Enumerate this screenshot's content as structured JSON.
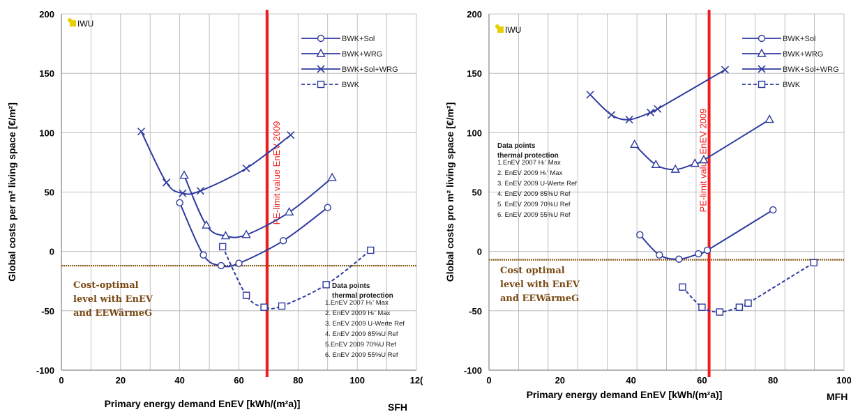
{
  "chart_data": [
    {
      "type": "line",
      "logo": "IWU",
      "xlabel": "Primary energy demand EnEV [kWh/(m²a)]",
      "ylabel": "Global costs per m² living space [€/m²]",
      "corner_label": "SFH",
      "xlim": [
        0,
        120
      ],
      "ylim": [
        -100,
        200
      ],
      "xticks": [
        "0",
        "20",
        "40",
        "60",
        "80",
        "100",
        "12("
      ],
      "yticks": [
        "200",
        "150",
        "100",
        "50",
        "0",
        "-50",
        "-100"
      ],
      "grid": true,
      "legend_position": "top-right",
      "limit_line": {
        "x": 69.5,
        "label": "PE-limit value EnEV 2009",
        "color": "#ee1c1c"
      },
      "cost_level": {
        "y": -12,
        "label_lines": [
          "Cost-optimal",
          "level with EnEV",
          "and EEWärmeG"
        ],
        "color": "#8b5a1a"
      },
      "notes": {
        "header": [
          "Data points",
          "thermal protection"
        ],
        "lines": [
          "1.EnEV 2007 Hₜ' Max",
          "2. EnEV 2009 Hₜ' Max",
          "3. EnEV 2009 U-Werte Ref",
          "4. EnEV 2009 85%U Ref",
          "5.EnEV 2009 70%U Ref",
          "6. EnEV 2009 55%U Ref"
        ]
      },
      "series": [
        {
          "name": "BWK+Sol",
          "marker": "circle",
          "dash": false,
          "points": [
            [
              40,
              41
            ],
            [
              48,
              -3
            ],
            [
              54,
              -12
            ],
            [
              60,
              -10
            ],
            [
              75,
              9
            ],
            [
              90,
              37
            ]
          ]
        },
        {
          "name": "BWK+WRG",
          "marker": "triangle",
          "dash": false,
          "points": [
            [
              41.5,
              64
            ],
            [
              49,
              22
            ],
            [
              55.5,
              13
            ],
            [
              62.5,
              14
            ],
            [
              77,
              33
            ],
            [
              91.5,
              62
            ]
          ]
        },
        {
          "name": "BWK+Sol+WRG",
          "marker": "x",
          "dash": false,
          "points": [
            [
              27,
              101
            ],
            [
              35.5,
              58
            ],
            [
              41,
              49
            ],
            [
              47,
              51
            ],
            [
              62.5,
              70
            ],
            [
              77.5,
              98
            ]
          ]
        },
        {
          "name": "BWK",
          "marker": "square",
          "dash": true,
          "points": [
            [
              54.5,
              4
            ],
            [
              62.5,
              -37
            ],
            [
              68.5,
              -47
            ],
            [
              74.5,
              -46
            ],
            [
              89.5,
              -28
            ],
            [
              104.5,
              1
            ]
          ]
        }
      ],
      "colors": {
        "series": "#2e3a9e",
        "grid": "#b0b0b0"
      }
    },
    {
      "type": "line",
      "logo": "IWU",
      "xlabel": "Primary energy demand EnEV [kWh/(m²a)]",
      "ylabel": "Global costs pro m² living space [€/m²]",
      "corner_label": "MFH",
      "xlim": [
        0,
        100
      ],
      "ylim": [
        -100,
        200
      ],
      "xticks": [
        "0",
        "20",
        "40",
        "60",
        "80",
        "100"
      ],
      "yticks": [
        "200",
        "150",
        "100",
        "50",
        "0",
        "-50",
        "-100"
      ],
      "grid": true,
      "legend_position": "top-right",
      "limit_line": {
        "x": 62,
        "label": "PE-limit value EnEV 2009",
        "color": "#ee1c1c"
      },
      "cost_level": {
        "y": -7,
        "label_lines": [
          "Cost optimal",
          "level with EnEV",
          "and EEWärmeG"
        ],
        "color": "#8b5a1a"
      },
      "notes": {
        "header": [
          "Data points",
          "thermal protection"
        ],
        "lines": [
          "1.EnEV 2007 Hₜ' Max",
          "2. EnEV 2009 Hₜ' Max",
          "3. EnEV 2009 U-Werte Ref",
          "4. EnEV 2009 85%U Ref",
          "5. EnEV 2009 70%U Ref",
          "6. EnEV 2009 55%U Ref"
        ]
      },
      "series": [
        {
          "name": "BWK+Sol",
          "marker": "circle",
          "dash": false,
          "points": [
            [
              42.5,
              14
            ],
            [
              48,
              -3
            ],
            [
              53.5,
              -6.5
            ],
            [
              59,
              -2
            ],
            [
              61.5,
              1
            ],
            [
              80,
              35
            ]
          ]
        },
        {
          "name": "BWK+WRG",
          "marker": "triangle",
          "dash": false,
          "points": [
            [
              41,
              90
            ],
            [
              47,
              73
            ],
            [
              52.5,
              69
            ],
            [
              58,
              74
            ],
            [
              60.5,
              77
            ],
            [
              79,
              111
            ]
          ]
        },
        {
          "name": "BWK+Sol+WRG",
          "marker": "x",
          "dash": false,
          "points": [
            [
              28.5,
              132
            ],
            [
              34.5,
              115
            ],
            [
              39.5,
              111
            ],
            [
              45.5,
              117
            ],
            [
              47.5,
              120
            ],
            [
              66.5,
              153
            ]
          ]
        },
        {
          "name": "BWK",
          "marker": "square",
          "dash": true,
          "points": [
            [
              54.5,
              -30
            ],
            [
              60,
              -47
            ],
            [
              65,
              -51
            ],
            [
              70.5,
              -47
            ],
            [
              73,
              -43.5
            ],
            [
              91.5,
              -9.5
            ]
          ]
        }
      ],
      "colors": {
        "series": "#2e3a9e",
        "grid": "#b0b0b0"
      }
    }
  ]
}
